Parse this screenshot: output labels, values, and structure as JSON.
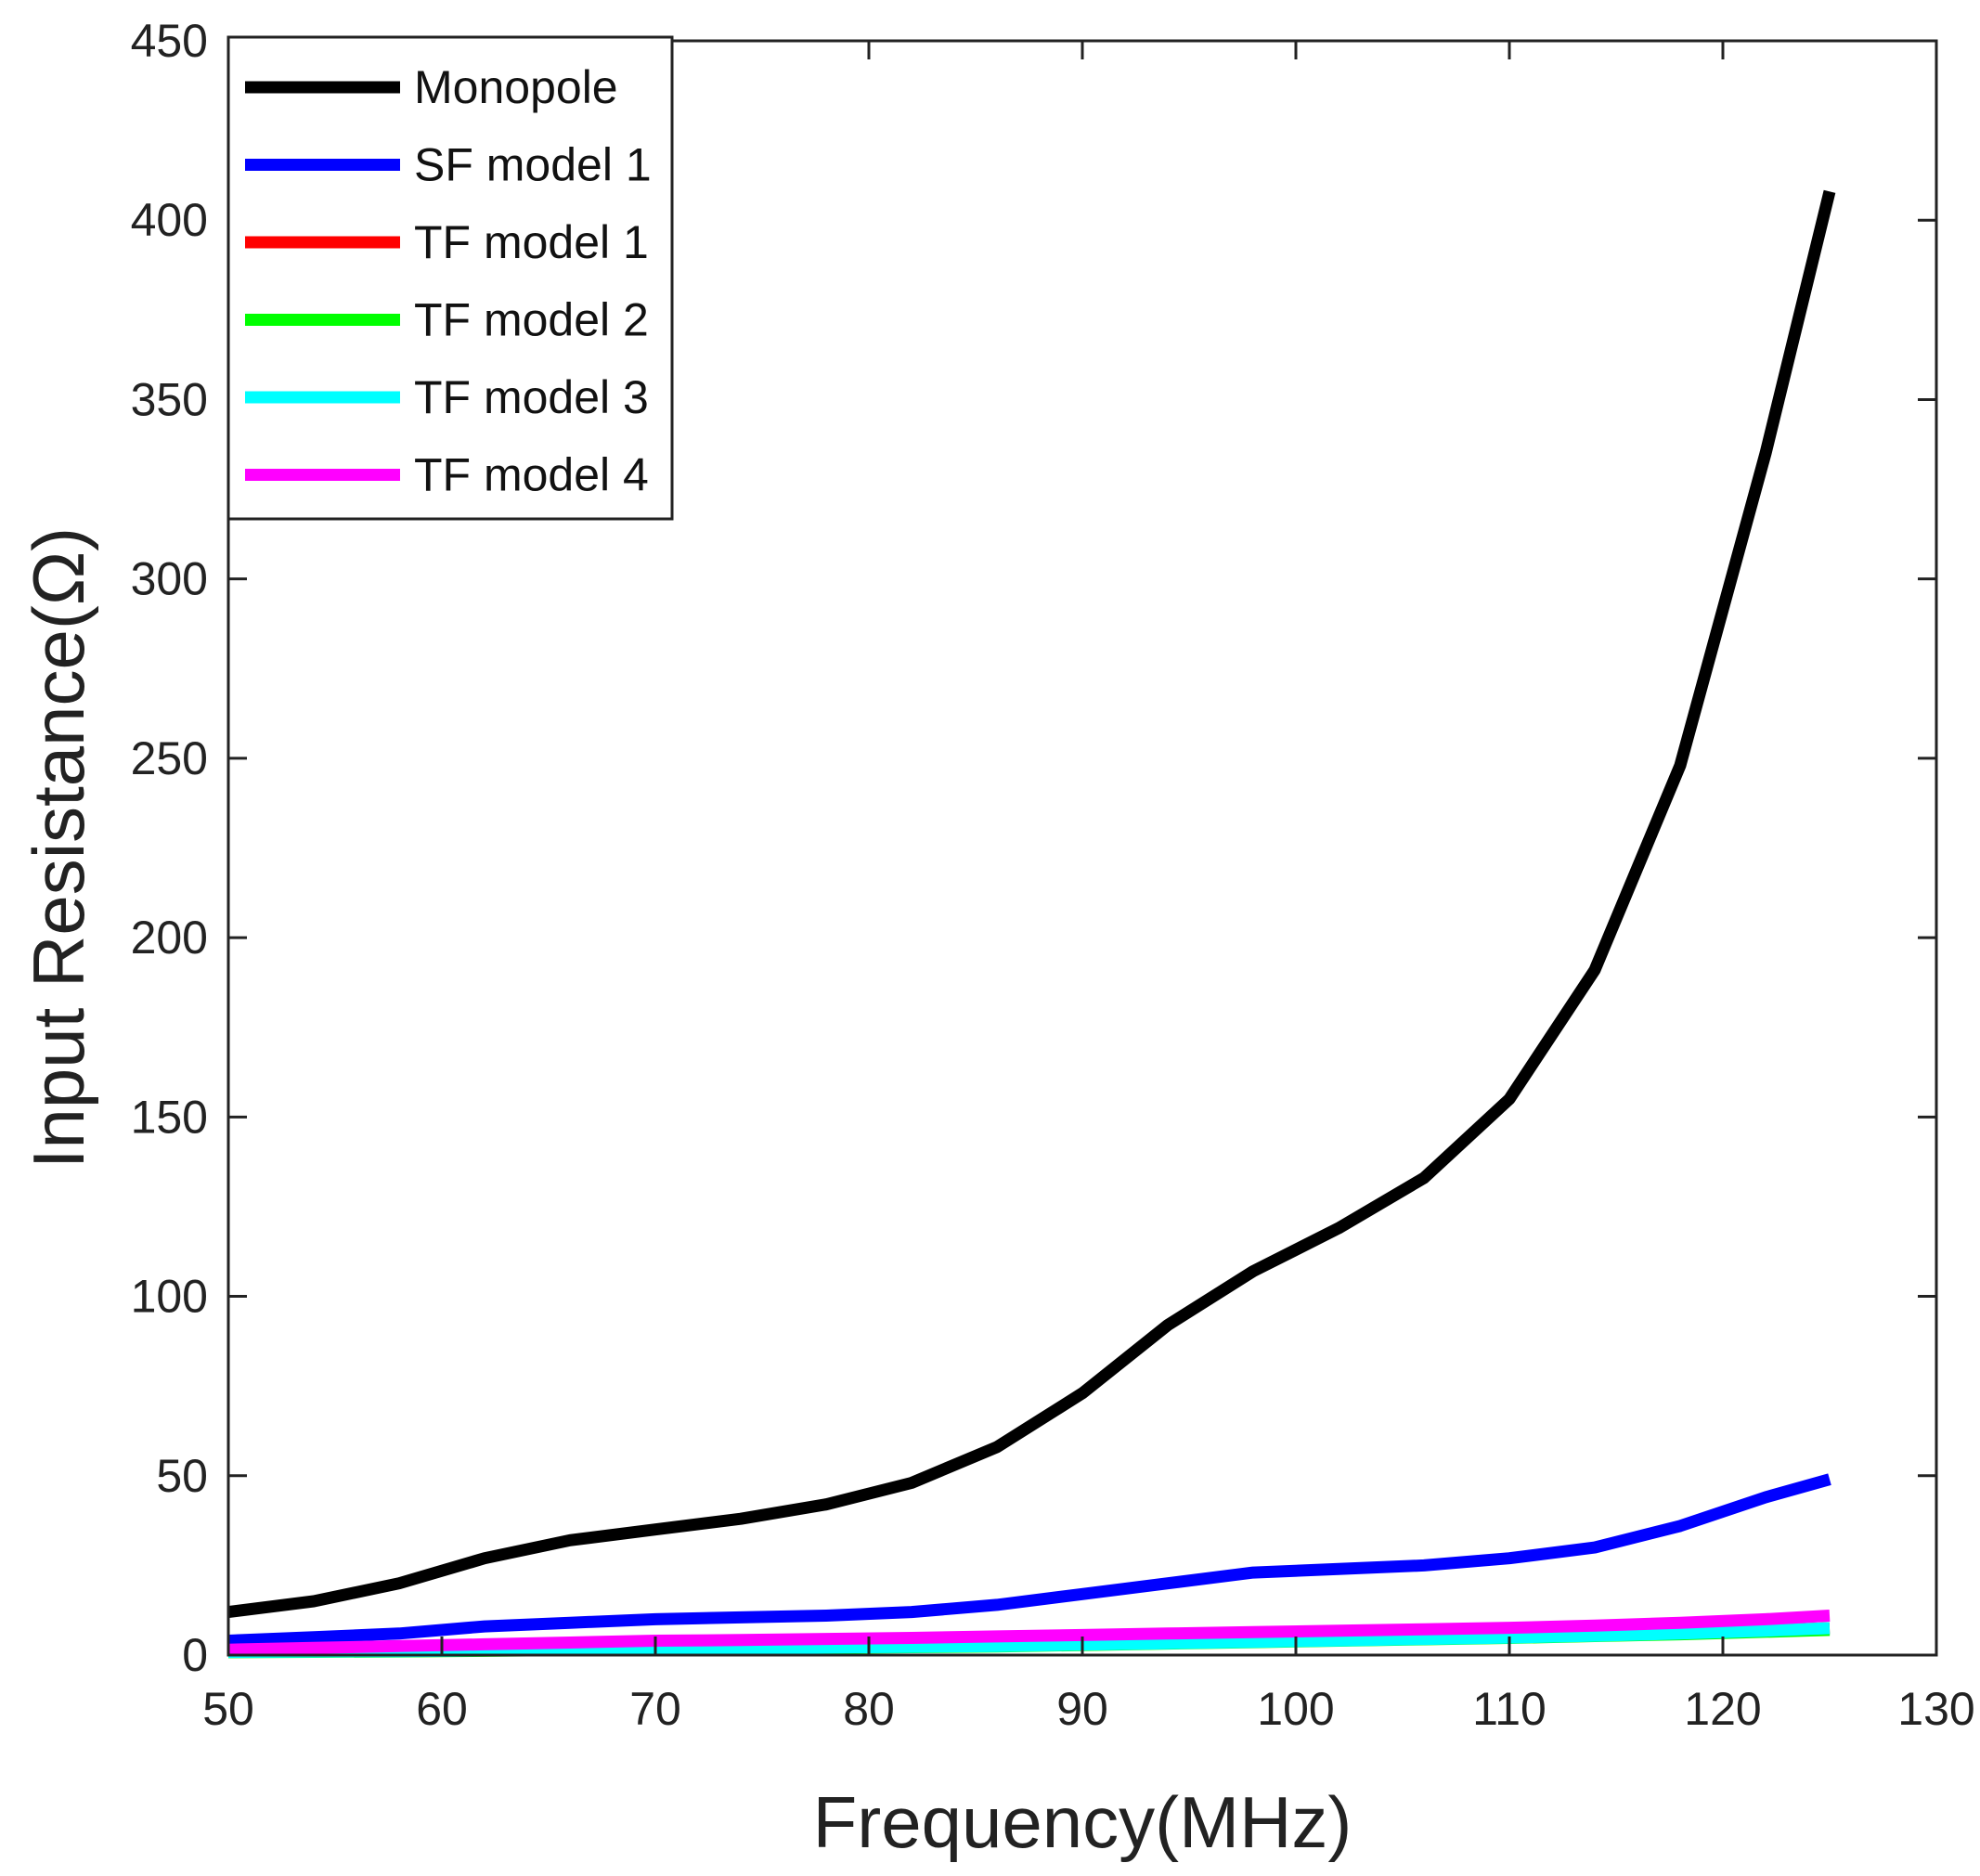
{
  "chart_data": {
    "type": "line",
    "title": "",
    "xlabel": "Frequency(MHz)",
    "ylabel": "Input Resistance(Ω)",
    "xlim": [
      50,
      130
    ],
    "ylim": [
      0,
      450
    ],
    "xticks": [
      50,
      60,
      70,
      80,
      90,
      100,
      110,
      120,
      130
    ],
    "yticks": [
      0,
      50,
      100,
      150,
      200,
      250,
      300,
      350,
      400,
      450
    ],
    "xtick_labels": [
      "50",
      "60",
      "70",
      "80",
      "90",
      "100",
      "110",
      "120",
      "130"
    ],
    "ytick_labels": [
      "0",
      "50",
      "100",
      "150",
      "200",
      "250",
      "300",
      "350",
      "400",
      "450"
    ],
    "grid": false,
    "legend_position": "top-left",
    "x": [
      50,
      54,
      58,
      62,
      66,
      70,
      74,
      78,
      82,
      86,
      90,
      94,
      98,
      102,
      106,
      110,
      114,
      118,
      122,
      125
    ],
    "series": [
      {
        "name": "Monopole",
        "color": "#000000",
        "values": [
          12,
          15,
          20,
          27,
          32,
          35,
          38,
          42,
          48,
          58,
          73,
          92,
          107,
          119,
          133,
          155,
          191,
          248,
          335,
          408
        ]
      },
      {
        "name": "SF model 1",
        "color": "#0000ff",
        "values": [
          4,
          5,
          6,
          8,
          9,
          10,
          10.5,
          11,
          12,
          14,
          17,
          20,
          23,
          24,
          25,
          27,
          30,
          36,
          44,
          49
        ]
      },
      {
        "name": "TF model 1",
        "color": "#ff0000",
        "values": [
          1,
          1,
          1.2,
          1.4,
          1.6,
          1.8,
          2,
          2.2,
          2.4,
          2.6,
          3,
          3.4,
          3.8,
          4.2,
          4.6,
          5,
          5.5,
          6,
          6.8,
          7.5
        ]
      },
      {
        "name": "TF model 2",
        "color": "#00ff00",
        "values": [
          0.8,
          0.9,
          1,
          1.2,
          1.4,
          1.6,
          1.8,
          2,
          2.2,
          2.4,
          2.8,
          3.2,
          3.6,
          4,
          4.4,
          4.8,
          5.3,
          5.8,
          6.5,
          7
        ]
      },
      {
        "name": "TF model 3",
        "color": "#00ffff",
        "values": [
          0.9,
          1,
          1.1,
          1.3,
          1.5,
          1.7,
          1.9,
          2.1,
          2.3,
          2.5,
          2.9,
          3.3,
          3.7,
          4.1,
          4.5,
          4.9,
          5.4,
          6,
          6.8,
          7.5
        ]
      },
      {
        "name": "TF model 4",
        "color": "#ff00ff",
        "values": [
          1.5,
          2,
          2.5,
          3,
          3.5,
          4,
          4.2,
          4.5,
          4.8,
          5.2,
          5.6,
          6,
          6.4,
          6.8,
          7.2,
          7.6,
          8.2,
          9,
          10,
          11
        ]
      }
    ]
  }
}
